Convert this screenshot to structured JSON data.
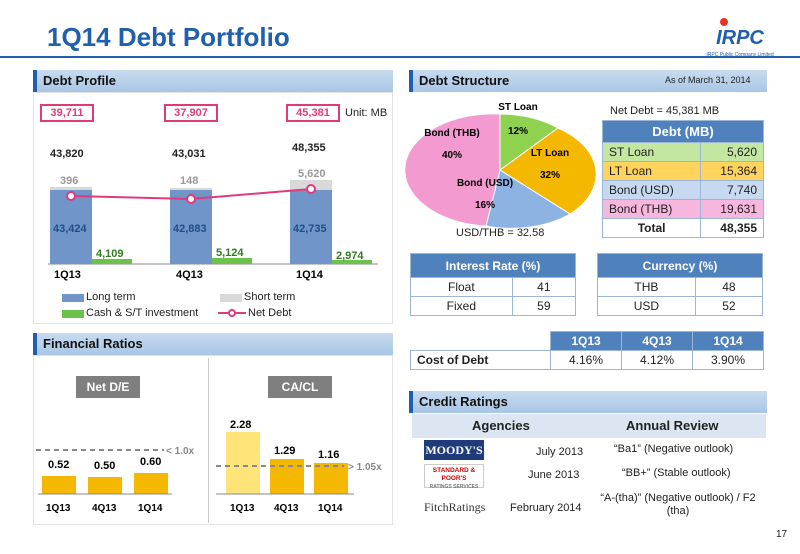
{
  "page": {
    "title": "1Q14 Debt Portfolio",
    "page_number": "17",
    "logo_text": "IRPC",
    "logo_sub": "IRPC Public Company Limited"
  },
  "debt_profile": {
    "heading": "Debt Profile",
    "unit": "Unit: MB",
    "net_debt_boxes": [
      "39,711",
      "37,907",
      "45,381"
    ],
    "totals": [
      "43,820",
      "43,031",
      "48,355"
    ],
    "short_term": [
      "396",
      "148",
      "5,620"
    ],
    "long_term": [
      "43,424",
      "42,883",
      "42,735"
    ],
    "cash": [
      "4,109",
      "5,124",
      "2,974"
    ],
    "categories": [
      "1Q13",
      "4Q13",
      "1Q14"
    ],
    "legend": {
      "long": "Long term",
      "short": "Short term",
      "cash": "Cash & S/T investment",
      "net": "Net Debt"
    }
  },
  "debt_structure": {
    "heading": "Debt Structure",
    "as_of": "As of  March 31, 2014",
    "net_debt": "Net Debt = 45,381 MB",
    "fx": "USD/THB = 32.58",
    "pie": [
      {
        "label": "ST Loan",
        "pct": "12%",
        "color": "#8fd24f"
      },
      {
        "label": "LT Loan",
        "pct": "32%",
        "color": "#f5b800"
      },
      {
        "label": "Bond (USD)",
        "pct": "16%",
        "color": "#8db3e2"
      },
      {
        "label": "Bond (THB)",
        "pct": "40%",
        "color": "#f39bd0"
      }
    ],
    "table_title": "Debt (MB)",
    "rows": [
      {
        "name": "ST Loan",
        "value": "5,620",
        "bg": "#c3e6a0"
      },
      {
        "name": "LT Loan",
        "value": "15,364",
        "bg": "#ffd35c"
      },
      {
        "name": "Bond (USD)",
        "value": "7,740",
        "bg": "#c6d9f0"
      },
      {
        "name": "Bond (THB)",
        "value": "19,631",
        "bg": "#f7b6dd"
      },
      {
        "name": "Total",
        "value": "48,355",
        "bg": "#fff"
      }
    ]
  },
  "interest": {
    "title": "Interest Rate (%)",
    "rows": [
      [
        "Float",
        "41"
      ],
      [
        "Fixed",
        "59"
      ]
    ]
  },
  "currency": {
    "title": "Currency (%)",
    "rows": [
      [
        "THB",
        "48"
      ],
      [
        "USD",
        "52"
      ]
    ]
  },
  "cost": {
    "cols": [
      "1Q13",
      "4Q13",
      "1Q14"
    ],
    "label": "Cost of Debt",
    "values": [
      "4.16%",
      "4.12%",
      "3.90%"
    ]
  },
  "ratios": {
    "heading": "Financial Ratios",
    "netde": {
      "title": "Net D/E",
      "values": [
        "0.52",
        "0.50",
        "0.60"
      ],
      "threshold": "< 1.0x",
      "categories": [
        "1Q13",
        "4Q13",
        "1Q14"
      ]
    },
    "cacl": {
      "title": "CA/CL",
      "values": [
        "2.28",
        "1.29",
        "1.16"
      ],
      "threshold": "> 1.05x",
      "categories": [
        "1Q13",
        "4Q13",
        "1Q14"
      ]
    }
  },
  "credit": {
    "heading": "Credit Ratings",
    "col1": "Agencies",
    "col2": "Annual Review",
    "rows": [
      {
        "agency": "MOODY'S",
        "date": "July 2013",
        "rating": "“Ba1” (Negative outlook)"
      },
      {
        "agency": "STANDARD & POOR'S",
        "sub": "RATINGS SERVICES",
        "date": "June 2013",
        "rating": "“BB+” (Stable outlook)"
      },
      {
        "agency": "FitchRatings",
        "date": "February 2014",
        "rating": "“A-(tha)” (Negative outlook) / F2 (tha)"
      }
    ]
  },
  "chart_data": [
    {
      "type": "bar",
      "title": "Debt Profile",
      "categories": [
        "1Q13",
        "4Q13",
        "1Q14"
      ],
      "series": [
        {
          "name": "Long term",
          "values": [
            43424,
            42883,
            42735
          ]
        },
        {
          "name": "Short term",
          "values": [
            396,
            148,
            5620
          ]
        },
        {
          "name": "Cash & S/T investment",
          "values": [
            4109,
            5124,
            2974
          ]
        },
        {
          "name": "Net Debt",
          "values": [
            39711,
            37907,
            45381
          ]
        }
      ]
    },
    {
      "type": "pie",
      "title": "Debt Structure",
      "categories": [
        "ST Loan",
        "LT Loan",
        "Bond (USD)",
        "Bond (THB)"
      ],
      "values": [
        12,
        32,
        16,
        40
      ]
    },
    {
      "type": "bar",
      "title": "Net D/E",
      "categories": [
        "1Q13",
        "4Q13",
        "1Q14"
      ],
      "values": [
        0.52,
        0.5,
        0.6
      ]
    },
    {
      "type": "bar",
      "title": "CA/CL",
      "categories": [
        "1Q13",
        "4Q13",
        "1Q14"
      ],
      "values": [
        2.28,
        1.29,
        1.16
      ]
    }
  ]
}
